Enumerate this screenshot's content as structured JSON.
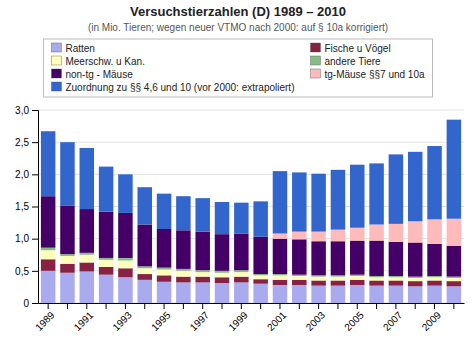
{
  "chart_data": {
    "type": "bar",
    "stacked": true,
    "title": "Versuchstierzahlen (D) 1989 – 2010",
    "subtitle": "(in Mio. Tieren; wegen neuer VTMO nach 2000: auf § 10a korrigiert)",
    "categories": [
      "1989",
      null,
      "1991",
      null,
      "1993",
      null,
      "1995",
      null,
      "1997",
      null,
      "1999",
      null,
      "2001",
      null,
      "2003",
      null,
      "2005",
      null,
      "2007",
      null,
      "2009",
      null
    ],
    "series": [
      {
        "name": "Ratten",
        "color": "#aaaaee",
        "values": [
          0.5,
          0.47,
          0.49,
          0.44,
          0.4,
          0.36,
          0.33,
          0.32,
          0.32,
          0.31,
          0.32,
          0.3,
          0.28,
          0.28,
          0.27,
          0.27,
          0.28,
          0.27,
          0.27,
          0.26,
          0.27,
          0.26
        ]
      },
      {
        "name": "Fische u Vögel",
        "color": "#882244",
        "values": [
          0.18,
          0.14,
          0.14,
          0.12,
          0.14,
          0.09,
          0.1,
          0.09,
          0.09,
          0.09,
          0.09,
          0.07,
          0.08,
          0.08,
          0.08,
          0.08,
          0.08,
          0.08,
          0.08,
          0.08,
          0.08,
          0.08
        ]
      },
      {
        "name": "Meerschw. u Kan.",
        "color": "#ffffbb",
        "values": [
          0.14,
          0.12,
          0.12,
          0.11,
          0.12,
          0.09,
          0.09,
          0.09,
          0.07,
          0.07,
          0.07,
          0.06,
          0.07,
          0.06,
          0.06,
          0.06,
          0.06,
          0.05,
          0.05,
          0.05,
          0.05,
          0.05
        ]
      },
      {
        "name": "andere Tiere",
        "color": "#88bb88",
        "values": [
          0.04,
          0.03,
          0.03,
          0.03,
          0.04,
          0.03,
          0.03,
          0.03,
          0.03,
          0.03,
          0.03,
          0.02,
          0.02,
          0.02,
          0.02,
          0.02,
          0.02,
          0.02,
          0.02,
          0.02,
          0.02,
          0.02
        ]
      },
      {
        "name": "non-tg - Mäuse",
        "color": "#440066",
        "values": [
          0.8,
          0.75,
          0.68,
          0.72,
          0.7,
          0.65,
          0.6,
          0.6,
          0.6,
          0.57,
          0.57,
          0.58,
          0.55,
          0.55,
          0.53,
          0.53,
          0.53,
          0.55,
          0.53,
          0.53,
          0.5,
          0.48
        ]
      },
      {
        "name": "tg-Mäuse §§7 und 10a",
        "color": "#ffbbbb",
        "values": [
          0.0,
          0.0,
          0.0,
          0.0,
          0.0,
          0.0,
          0.0,
          0.0,
          0.0,
          0.0,
          0.0,
          0.0,
          0.08,
          0.12,
          0.15,
          0.18,
          0.2,
          0.25,
          0.28,
          0.33,
          0.38,
          0.42
        ]
      },
      {
        "name": "Zuordnung zu §§ 4,6 und 10 (vor 2000: extrapoliert)",
        "color": "#3366cc",
        "values": [
          1.01,
          0.99,
          0.95,
          0.7,
          0.6,
          0.58,
          0.55,
          0.53,
          0.52,
          0.5,
          0.48,
          0.55,
          0.97,
          0.92,
          0.9,
          0.93,
          0.98,
          0.95,
          1.08,
          1.08,
          1.14,
          1.54
        ]
      }
    ],
    "ylim": [
      0,
      3.0
    ],
    "yticks": [
      0,
      {
        "value": 0.5,
        "label": "0,5"
      },
      {
        "value": 1.0,
        "label": "1,0"
      },
      {
        "value": 1.5,
        "label": "1,5"
      },
      {
        "value": 2.0,
        "label": "2,0"
      },
      {
        "value": 2.5,
        "label": "2,5"
      },
      {
        "value": 3.0,
        "label": "3,0"
      }
    ],
    "grid": true,
    "legend": "top"
  }
}
